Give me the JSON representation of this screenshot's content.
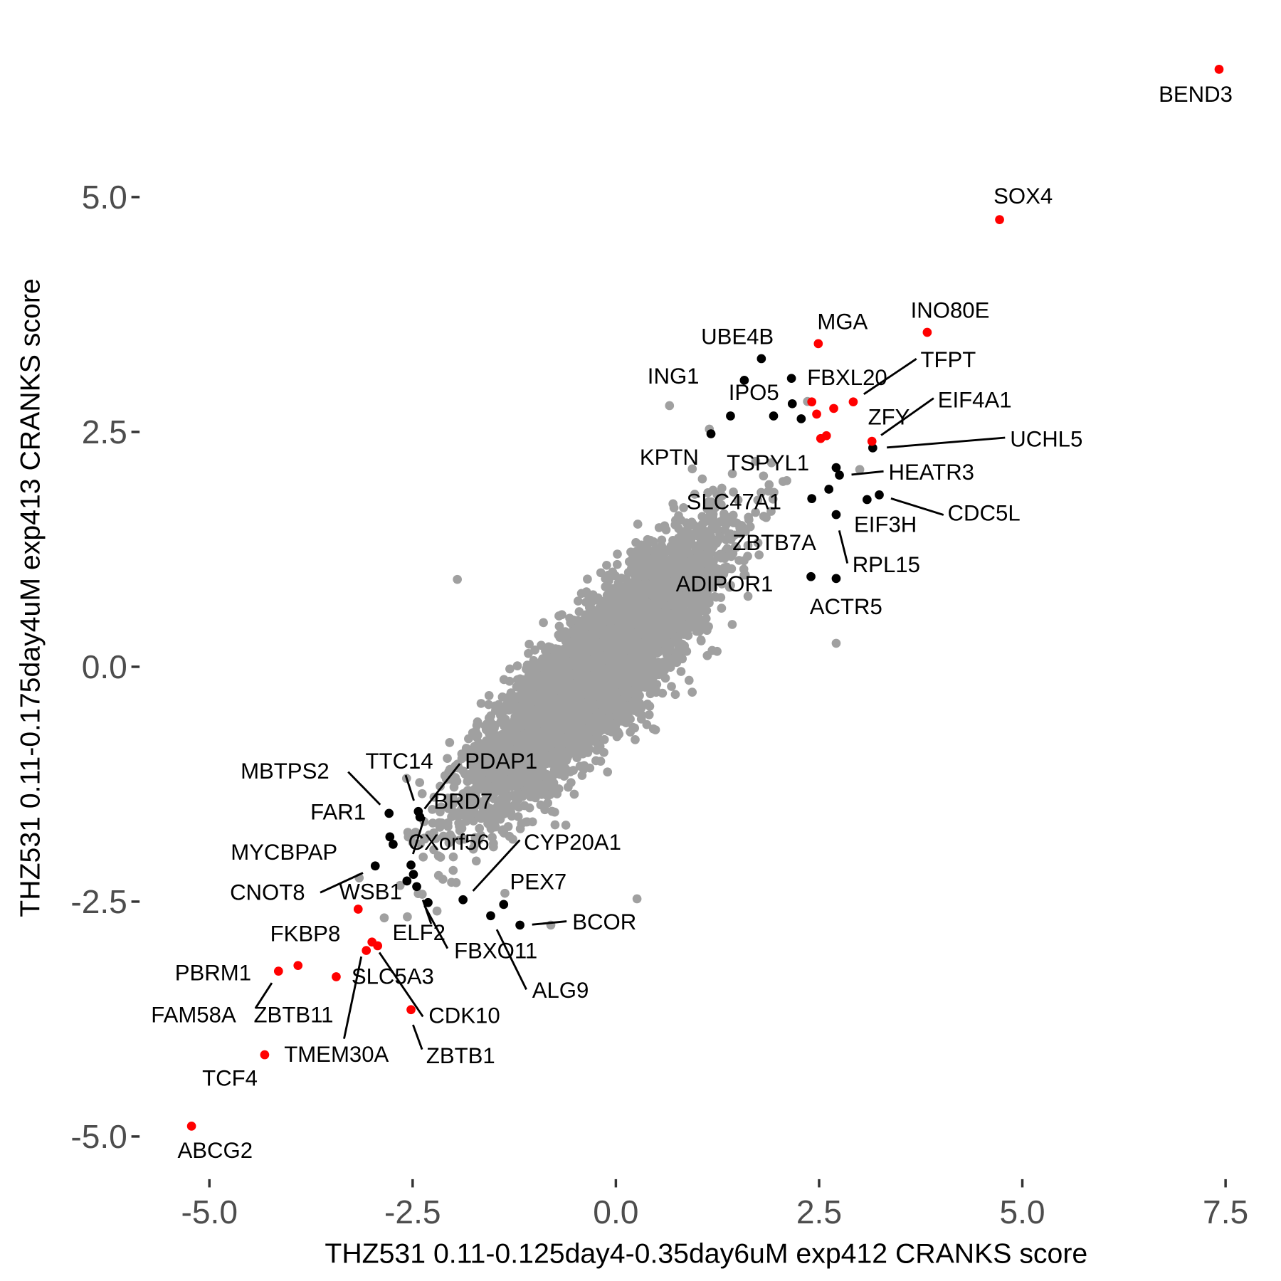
{
  "chart_data": {
    "type": "scatter",
    "xlabel": "THZ531 0.11-0.125day4-0.35day6uM exp412 CRANKS score",
    "ylabel": "THZ531 0.11-0.175day4uM exp413 CRANKS score",
    "xlim": [
      -5.8,
      7.6
    ],
    "ylim": [
      -5.4,
      6.7
    ],
    "x_ticks": [
      {
        "v": -5,
        "label": "-5.0"
      },
      {
        "v": -2.5,
        "label": "-2.5"
      },
      {
        "v": 0,
        "label": "0.0"
      },
      {
        "v": 2.5,
        "label": "2.5"
      },
      {
        "v": 5,
        "label": "5.0"
      },
      {
        "v": 7.5,
        "label": "7.5"
      }
    ],
    "y_ticks": [
      {
        "v": -5,
        "label": "-5.0"
      },
      {
        "v": -2.5,
        "label": "-2.5"
      },
      {
        "v": 0,
        "label": "0.0"
      },
      {
        "v": 2.5,
        "label": "2.5"
      },
      {
        "v": 5,
        "label": "5.0"
      }
    ],
    "grid": false,
    "colors": {
      "background": "#a0a0a0",
      "hit_red": "#ff0000",
      "hit_black": "#000000"
    },
    "background_cloud": {
      "count": 6000,
      "sd_x": 0.72,
      "sd_y": 0.68,
      "correlation": 0.86
    },
    "red_points": [
      [
        7.42,
        6.36
      ],
      [
        4.72,
        4.76
      ],
      [
        2.49,
        3.44
      ],
      [
        3.83,
        3.56
      ],
      [
        2.41,
        2.82
      ],
      [
        2.47,
        2.69
      ],
      [
        2.68,
        2.75
      ],
      [
        2.92,
        2.82
      ],
      [
        2.52,
        2.43
      ],
      [
        2.59,
        2.46
      ],
      [
        3.15,
        2.4
      ],
      [
        -3.17,
        -2.58
      ],
      [
        -3.0,
        -2.93
      ],
      [
        -2.93,
        -2.97
      ],
      [
        -3.07,
        -3.02
      ],
      [
        -3.91,
        -3.18
      ],
      [
        -4.15,
        -3.24
      ],
      [
        -3.44,
        -3.3
      ],
      [
        -2.52,
        -3.65
      ],
      [
        -4.32,
        -4.13
      ],
      [
        -5.22,
        -4.89
      ]
    ],
    "black_points": [
      [
        1.79,
        3.28
      ],
      [
        1.58,
        3.05
      ],
      [
        2.16,
        3.07
      ],
      [
        1.41,
        2.67
      ],
      [
        1.94,
        2.67
      ],
      [
        2.17,
        2.8
      ],
      [
        2.28,
        2.64
      ],
      [
        1.17,
        2.48
      ],
      [
        3.16,
        2.33
      ],
      [
        2.71,
        2.12
      ],
      [
        2.75,
        2.04
      ],
      [
        2.62,
        1.89
      ],
      [
        2.41,
        1.79
      ],
      [
        3.24,
        1.83
      ],
      [
        3.09,
        1.78
      ],
      [
        2.71,
        1.62
      ],
      [
        2.4,
        0.96
      ],
      [
        2.71,
        0.94
      ],
      [
        -2.79,
        -1.56
      ],
      [
        -2.43,
        -1.54
      ],
      [
        -2.41,
        -1.6
      ],
      [
        -2.78,
        -1.81
      ],
      [
        -2.74,
        -1.89
      ],
      [
        -2.96,
        -2.12
      ],
      [
        -2.52,
        -2.11
      ],
      [
        -2.49,
        -2.21
      ],
      [
        -2.57,
        -2.28
      ],
      [
        -2.45,
        -2.34
      ],
      [
        -2.31,
        -2.51
      ],
      [
        -1.88,
        -2.48
      ],
      [
        -1.38,
        -2.53
      ],
      [
        -1.54,
        -2.65
      ],
      [
        -1.18,
        -2.75
      ]
    ],
    "grey_outliers": [
      [
        0.66,
        2.78
      ],
      [
        -1.95,
        0.93
      ],
      [
        0.26,
        -2.47
      ],
      [
        -0.8,
        -2.75
      ],
      [
        2.71,
        0.25
      ],
      [
        1.15,
        2.53
      ],
      [
        3.0,
        2.1
      ],
      [
        -2.2,
        -2.6
      ]
    ],
    "labels": [
      "BEND3",
      "SOX4",
      "INO80E",
      "MGA",
      "UBE4B",
      "ING1",
      "FBXL20",
      "IPO5",
      "TFPT",
      "EIF4A1",
      "ZFY",
      "UCHL5",
      "KPTN",
      "TSPYL1",
      "HEATR3",
      "SLC47A1",
      "CDC5L",
      "EIF3H",
      "ZBTB7A",
      "RPL15",
      "ADIPOR1",
      "ACTR5",
      "MBTPS2",
      "TTC14",
      "PDAP1",
      "BRD7",
      "FAR1",
      "CXorf56",
      "CYP20A1",
      "MYCBPAP",
      "CNOT8",
      "WSB1",
      "PEX7",
      "BCOR",
      "ELF2",
      "FBXO11",
      "FKBP8",
      "PBRM1",
      "SLC5A3",
      "ALG9",
      "FAM58A",
      "ZBTB11",
      "CDK10",
      "TMEM30A",
      "ZBTB1",
      "TCF4",
      "ABCG2"
    ]
  }
}
